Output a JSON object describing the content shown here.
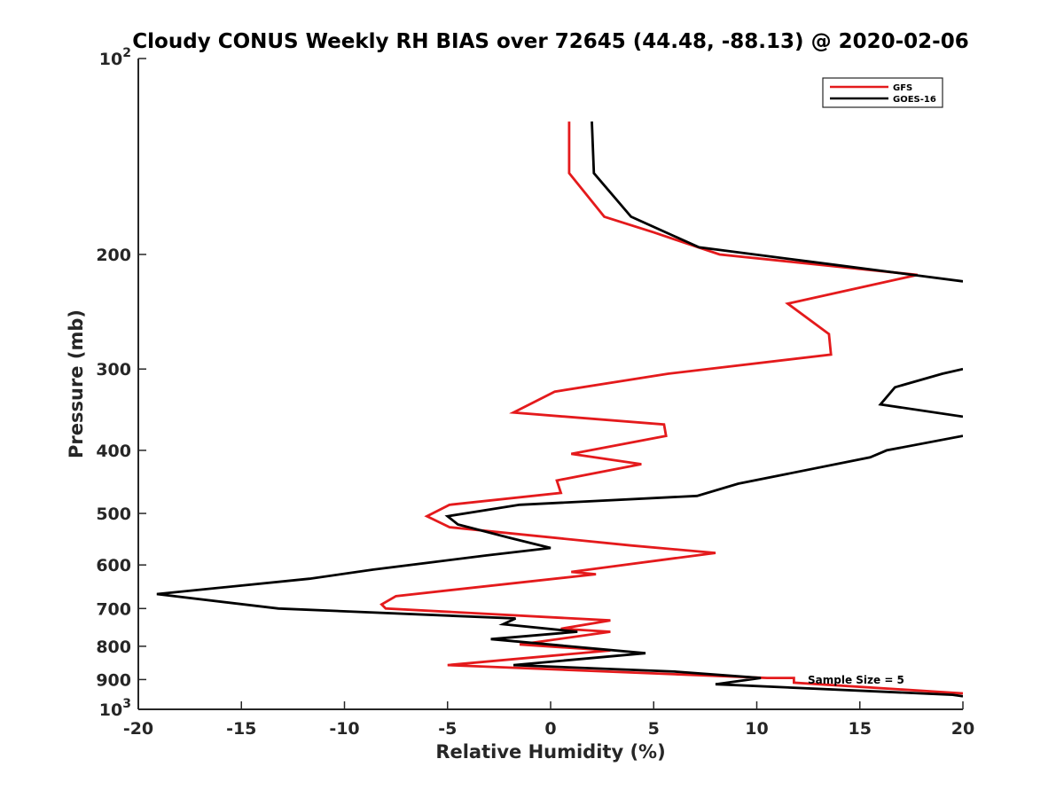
{
  "chart_data": {
    "type": "line",
    "title": "Cloudy CONUS Weekly RH BIAS over 72645 (44.48, -88.13) @ 2020-02-06",
    "xlabel": "Relative Humidity (%)",
    "ylabel": "Pressure (mb)",
    "xlim": [
      -20,
      20
    ],
    "ylim": [
      1000,
      100
    ],
    "y_scale": "log",
    "y_reversed": true,
    "grid": false,
    "legend_position": "top-right",
    "x_ticks": [
      "-20",
      "-15",
      "-10",
      "-5",
      "0",
      "5",
      "10",
      "15",
      "20"
    ],
    "y_ticks": [
      {
        "value": 100,
        "base": "10",
        "exp": "2"
      },
      {
        "value": 200,
        "label": "200"
      },
      {
        "value": 300,
        "label": "300"
      },
      {
        "value": 400,
        "label": "400"
      },
      {
        "value": 500,
        "label": "500"
      },
      {
        "value": 600,
        "label": "600"
      },
      {
        "value": 700,
        "label": "700"
      },
      {
        "value": 800,
        "label": "800"
      },
      {
        "value": 900,
        "label": "900"
      },
      {
        "value": 1000,
        "base": "10",
        "exp": "3"
      }
    ],
    "annotation": "Sample Size = 5",
    "series": [
      {
        "name": "GFS",
        "color": "#e41a1c",
        "points": [
          [
            0.9,
            125
          ],
          [
            0.9,
            150
          ],
          [
            2.6,
            175
          ],
          [
            5.0,
            185
          ],
          [
            8.2,
            200
          ],
          [
            17.8,
            215
          ],
          [
            11.5,
            238
          ],
          [
            13.5,
            265
          ],
          [
            13.6,
            285
          ],
          [
            5.7,
            305
          ],
          [
            0.2,
            325
          ],
          [
            -1.8,
            350
          ],
          [
            5.5,
            365
          ],
          [
            5.6,
            380
          ],
          [
            1.0,
            405
          ],
          [
            4.4,
            420
          ],
          [
            0.3,
            445
          ],
          [
            0.5,
            465
          ],
          [
            -4.9,
            485
          ],
          [
            -6.0,
            505
          ],
          [
            -4.9,
            525
          ],
          [
            3.9,
            560
          ],
          [
            8.0,
            575
          ],
          [
            5.3,
            590
          ],
          [
            1.0,
            615
          ],
          [
            2.2,
            620
          ],
          [
            -7.5,
            670
          ],
          [
            -8.2,
            690
          ],
          [
            -8.0,
            700
          ],
          [
            2.9,
            730
          ],
          [
            0.5,
            752
          ],
          [
            2.9,
            760
          ],
          [
            -1.5,
            795
          ],
          [
            2.9,
            812
          ],
          [
            -5.0,
            855
          ],
          [
            10.5,
            895
          ],
          [
            11.8,
            895
          ],
          [
            11.8,
            910
          ],
          [
            20.0,
            945
          ]
        ]
      },
      {
        "name": "GOES-16",
        "color": "#000000",
        "points": [
          [
            2.0,
            125
          ],
          [
            2.1,
            150
          ],
          [
            3.9,
            175
          ],
          [
            7.2,
            195
          ],
          [
            12.5,
            205
          ],
          [
            20.0,
            220
          ],
          [
            null,
            null
          ],
          [
            20.0,
            300
          ],
          [
            19.0,
            305
          ],
          [
            16.7,
            320
          ],
          [
            16.0,
            340
          ],
          [
            20.0,
            355
          ],
          [
            null,
            null
          ],
          [
            20.0,
            380
          ],
          [
            16.3,
            400
          ],
          [
            15.5,
            410
          ],
          [
            9.1,
            450
          ],
          [
            7.1,
            470
          ],
          [
            -1.5,
            485
          ],
          [
            -5.0,
            505
          ],
          [
            -4.5,
            520
          ],
          [
            -2.0,
            545
          ],
          [
            0.0,
            565
          ],
          [
            -3.1,
            580
          ],
          [
            -8.6,
            610
          ],
          [
            -11.7,
            630
          ],
          [
            -19.1,
            665
          ],
          [
            -13.2,
            700
          ],
          [
            -1.7,
            725
          ],
          [
            -2.3,
            740
          ],
          [
            1.3,
            760
          ],
          [
            -2.9,
            780
          ],
          [
            4.6,
            820
          ],
          [
            -1.8,
            855
          ],
          [
            6.0,
            875
          ],
          [
            10.2,
            895
          ],
          [
            8.0,
            915
          ],
          [
            19.5,
            950
          ],
          [
            20.0,
            955
          ]
        ]
      }
    ]
  }
}
